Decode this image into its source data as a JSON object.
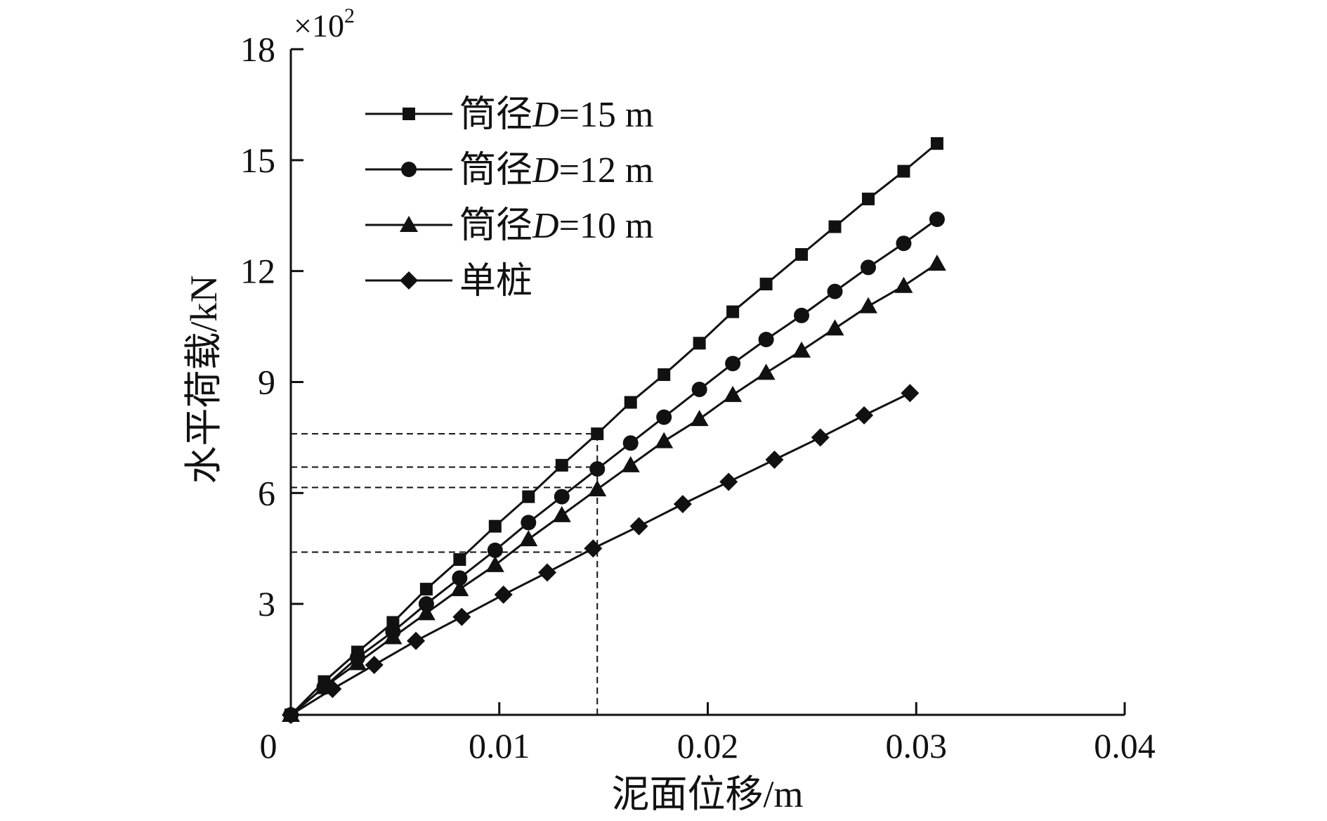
{
  "chart_data": {
    "type": "line",
    "xlabel": "泥面位移/m",
    "ylabel": "水平荷载/kN",
    "y_multiplier": "×10",
    "y_multiplier_exponent": "2",
    "xlim": [
      0,
      0.04
    ],
    "ylim": [
      0,
      18
    ],
    "x_ticks": [
      {
        "value": 0,
        "label": "0"
      },
      {
        "value": 0.01,
        "label": "0.01"
      },
      {
        "value": 0.02,
        "label": "0.02"
      },
      {
        "value": 0.03,
        "label": "0.03"
      },
      {
        "value": 0.04,
        "label": "0.04"
      }
    ],
    "y_ticks": [
      {
        "value": 3,
        "label": "3"
      },
      {
        "value": 6,
        "label": "6"
      },
      {
        "value": 9,
        "label": "9"
      },
      {
        "value": 12,
        "label": "12"
      },
      {
        "value": 15,
        "label": "15"
      },
      {
        "value": 18,
        "label": "18"
      }
    ],
    "legend_position": "top-left",
    "series": [
      {
        "name_prefix": "筒径",
        "name_italic": "D",
        "name_suffix": "=15 m",
        "marker": "square",
        "x": [
          0,
          0.0016,
          0.0032,
          0.0049,
          0.0065,
          0.0081,
          0.0098,
          0.0114,
          0.013,
          0.0147,
          0.0163,
          0.0179,
          0.0196,
          0.0212,
          0.0228,
          0.0245,
          0.0261,
          0.0277,
          0.0294,
          0.031
        ],
        "y": [
          0,
          0.9,
          1.7,
          2.5,
          3.4,
          4.2,
          5.1,
          5.9,
          6.75,
          7.6,
          8.45,
          9.2,
          10.05,
          10.9,
          11.65,
          12.45,
          13.2,
          13.95,
          14.7,
          15.45
        ]
      },
      {
        "name_prefix": "筒径",
        "name_italic": "D",
        "name_suffix": "=12 m",
        "marker": "circle",
        "x": [
          0,
          0.0016,
          0.0032,
          0.0049,
          0.0065,
          0.0081,
          0.0098,
          0.0114,
          0.013,
          0.0147,
          0.0163,
          0.0179,
          0.0196,
          0.0212,
          0.0228,
          0.0245,
          0.0261,
          0.0277,
          0.0294,
          0.031
        ],
        "y": [
          0,
          0.75,
          1.55,
          2.25,
          3.0,
          3.7,
          4.45,
          5.2,
          5.9,
          6.65,
          7.35,
          8.05,
          8.8,
          9.5,
          10.15,
          10.8,
          11.45,
          12.1,
          12.75,
          13.4
        ]
      },
      {
        "name_prefix": "筒径",
        "name_italic": "D",
        "name_suffix": "=10 m",
        "marker": "triangle",
        "x": [
          0,
          0.0016,
          0.0032,
          0.0049,
          0.0065,
          0.0081,
          0.0098,
          0.0114,
          0.013,
          0.0147,
          0.0163,
          0.0179,
          0.0196,
          0.0212,
          0.0228,
          0.0245,
          0.0261,
          0.0277,
          0.0294,
          0.031
        ],
        "y": [
          0,
          0.75,
          1.4,
          2.1,
          2.75,
          3.4,
          4.05,
          4.75,
          5.4,
          6.1,
          6.75,
          7.4,
          8.0,
          8.65,
          9.25,
          9.85,
          10.45,
          11.05,
          11.6,
          12.2
        ]
      },
      {
        "name_prefix": "单桩",
        "name_italic": "",
        "name_suffix": "",
        "marker": "diamond",
        "x": [
          0,
          0.002,
          0.004,
          0.006,
          0.0082,
          0.0102,
          0.0123,
          0.0145,
          0.0167,
          0.0188,
          0.021,
          0.0232,
          0.0254,
          0.0275,
          0.0297
        ],
        "y": [
          0,
          0.7,
          1.35,
          2.0,
          2.65,
          3.25,
          3.85,
          4.5,
          5.1,
          5.7,
          6.3,
          6.9,
          7.5,
          8.1,
          8.7
        ]
      }
    ],
    "reference_lines": {
      "x": 0.0147,
      "y_levels": [
        7.6,
        6.7,
        6.15,
        4.4
      ]
    }
  }
}
